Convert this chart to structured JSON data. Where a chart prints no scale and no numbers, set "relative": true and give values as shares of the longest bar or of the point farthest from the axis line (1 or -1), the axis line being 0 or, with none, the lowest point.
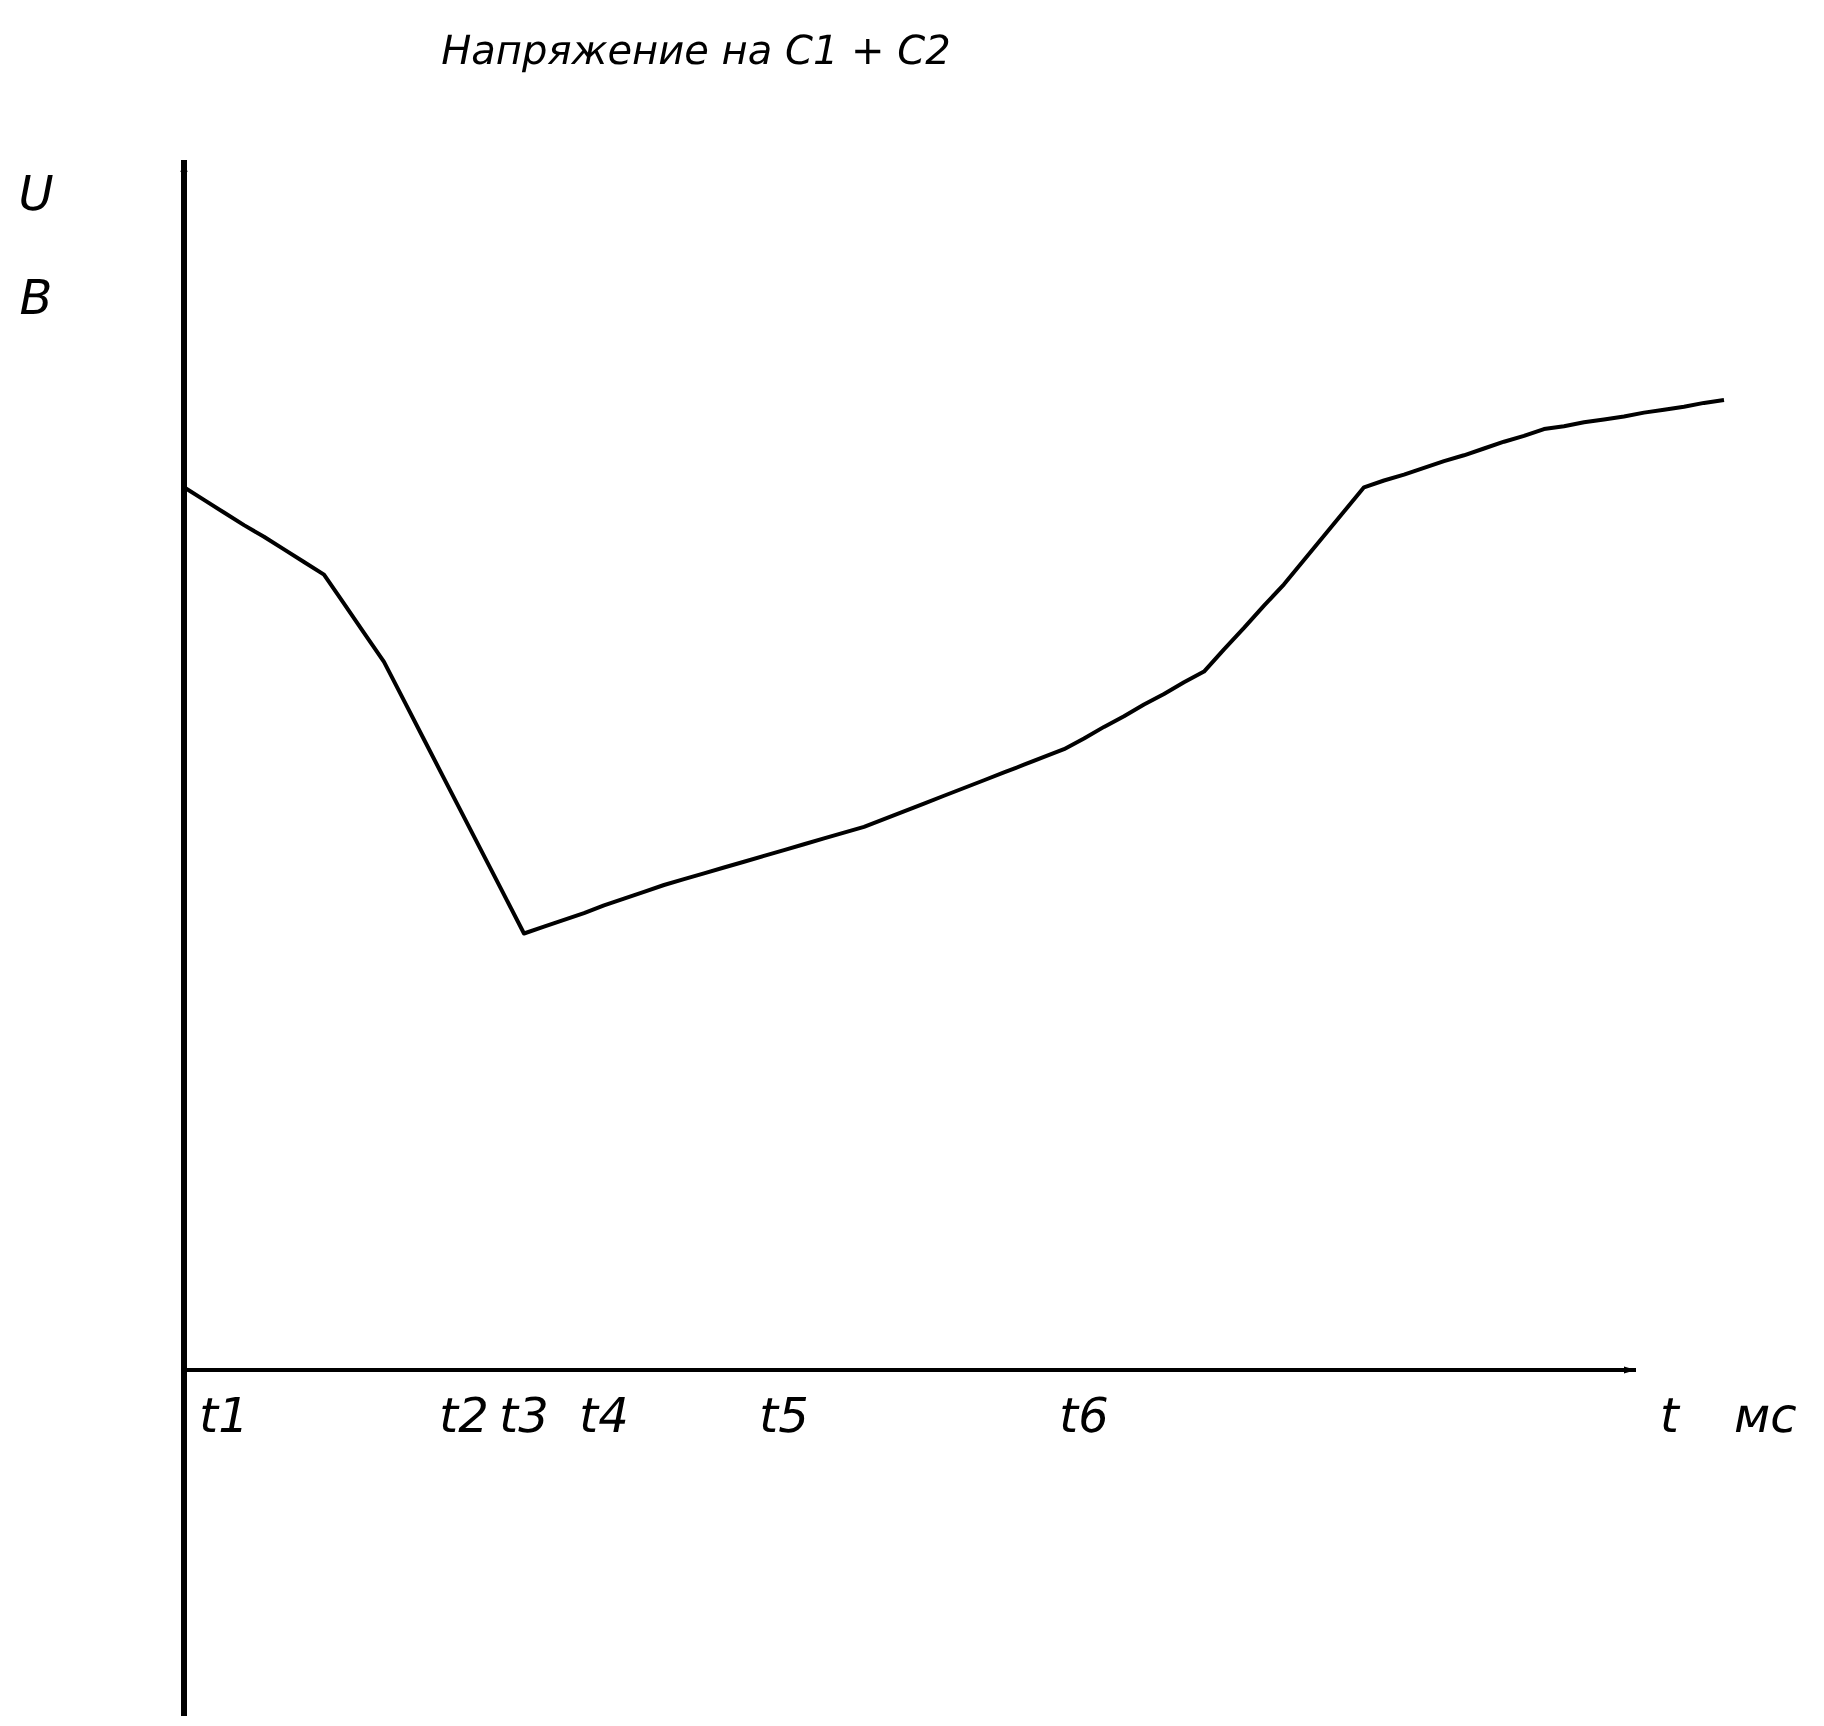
{
  "chart_data": {
    "type": "line",
    "title": "Напряжение на C1 + C2",
    "xlabel": "t мс",
    "ylabel": "U\nВ",
    "relative": true,
    "line_style": "solid",
    "categories": [
      null,
      null,
      "t1",
      null,
      null,
      null,
      null,
      null,
      null,
      null,
      null,
      null,
      null,
      null,
      "t2",
      null,
      null,
      "t3",
      null,
      null,
      null,
      "t4",
      null,
      null,
      null,
      null,
      null,
      null,
      null,
      null,
      "t5",
      null,
      null,
      null,
      null,
      null,
      null,
      null,
      null,
      null,
      null,
      null,
      null,
      null,
      null,
      "t6",
      null,
      null,
      null,
      null,
      null,
      null,
      null,
      null,
      null,
      null,
      null,
      null,
      null,
      null,
      null,
      null,
      null,
      null,
      null,
      null,
      null,
      null,
      null,
      null,
      null,
      null,
      null,
      null,
      null,
      null,
      null,
      null
    ],
    "series": [
      {
        "color": "#000000",
        "values": [
          0.91,
          0.897,
          0.884,
          0.871,
          0.859,
          0.846,
          0.833,
          0.82,
          0.79,
          0.76,
          0.73,
          0.69,
          0.65,
          0.61,
          0.57,
          0.53,
          0.49,
          0.45,
          0.457,
          0.464,
          0.471,
          0.479,
          0.486,
          0.493,
          0.5,
          0.506,
          0.512,
          0.518,
          0.524,
          0.53,
          0.536,
          0.542,
          0.548,
          0.554,
          0.56,
          0.568,
          0.576,
          0.584,
          0.592,
          0.6,
          0.608,
          0.616,
          0.624,
          0.632,
          0.64,
          0.651,
          0.663,
          0.674,
          0.686,
          0.697,
          0.709,
          0.72,
          0.743,
          0.765,
          0.788,
          0.81,
          0.835,
          0.86,
          0.885,
          0.91,
          0.917,
          0.923,
          0.93,
          0.937,
          0.943,
          0.95,
          0.957,
          0.963,
          0.97,
          0.973,
          0.977,
          0.98,
          0.983,
          0.987,
          0.99,
          0.993,
          0.997,
          1
        ]
      }
    ]
  }
}
